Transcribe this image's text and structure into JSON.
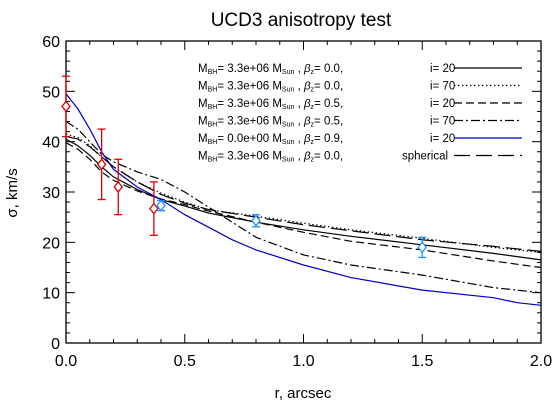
{
  "chart_data": {
    "type": "line",
    "title": "UCD3 anisotropy test",
    "xlabel": "r, arcsec",
    "ylabel": "σ, km/s",
    "xlim": [
      0.0,
      2.0
    ],
    "ylim": [
      0,
      60
    ],
    "xticks": [
      "0.0",
      "0.5",
      "1.0",
      "1.5",
      "2.0"
    ],
    "yticks": [
      "0",
      "10",
      "20",
      "30",
      "40",
      "50",
      "60"
    ],
    "grid": false,
    "legend_position": "top-right",
    "series": [
      {
        "name": "M_BH= 3.3e+06 M_Sun , β_z= 0.0, i= 20",
        "color": "#000000",
        "dash": "solid",
        "x": [
          0.0,
          0.05,
          0.1,
          0.15,
          0.2,
          0.3,
          0.4,
          0.5,
          0.6,
          0.8,
          1.0,
          1.2,
          1.5,
          1.8,
          2.0
        ],
        "y": [
          40.5,
          39.2,
          37.3,
          35.0,
          33.0,
          30.5,
          28.5,
          27.2,
          25.8,
          24.0,
          22.5,
          21.2,
          19.5,
          17.8,
          16.5
        ]
      },
      {
        "name": "M_BH= 3.3e+06 M_Sun , β_z= 0.0, i= 70",
        "color": "#000000",
        "dash": "dotted",
        "x": [
          0.0,
          0.05,
          0.1,
          0.15,
          0.2,
          0.3,
          0.4,
          0.5,
          0.6,
          0.8,
          1.0,
          1.2,
          1.5,
          1.8,
          2.0
        ],
        "y": [
          41.5,
          40.8,
          39.2,
          37.0,
          35.0,
          32.0,
          29.8,
          28.0,
          26.5,
          25.2,
          23.8,
          22.5,
          20.8,
          19.0,
          18.0
        ]
      },
      {
        "name": "M_BH= 3.3e+06 M_Sun , β_z= 0.5, i= 20",
        "color": "#000000",
        "dash": "dashed",
        "x": [
          0.0,
          0.05,
          0.1,
          0.15,
          0.2,
          0.3,
          0.4,
          0.5,
          0.6,
          0.8,
          1.0,
          1.2,
          1.5,
          1.8,
          2.0
        ],
        "y": [
          39.8,
          38.5,
          36.5,
          34.0,
          32.3,
          30.2,
          28.6,
          27.5,
          26.2,
          24.0,
          22.0,
          20.2,
          18.5,
          16.3,
          15.0
        ]
      },
      {
        "name": "M_BH= 3.3e+06 M_Sun , β_z= 0.5, i= 70",
        "color": "#000000",
        "dash": "dashdot",
        "x": [
          0.0,
          0.05,
          0.1,
          0.15,
          0.2,
          0.3,
          0.4,
          0.5,
          0.6,
          0.7,
          0.8,
          1.0,
          1.2,
          1.5,
          1.8,
          2.0
        ],
        "y": [
          44.0,
          42.5,
          40.0,
          37.5,
          36.0,
          34.0,
          32.5,
          30.0,
          27.0,
          24.0,
          21.0,
          17.5,
          15.5,
          13.5,
          11.0,
          10.0
        ]
      },
      {
        "name": "M_BH= 0.0e+00 M_Sun , β_z= 0.9, i= 20",
        "color": "#0000cc",
        "dash": "solid",
        "x": [
          0.0,
          0.05,
          0.1,
          0.15,
          0.2,
          0.3,
          0.4,
          0.5,
          0.6,
          0.7,
          0.8,
          1.0,
          1.2,
          1.5,
          1.8,
          1.9,
          2.0
        ],
        "y": [
          49.5,
          46.5,
          42.5,
          38.0,
          34.5,
          31.0,
          28.5,
          25.5,
          23.0,
          20.5,
          18.5,
          15.5,
          13.0,
          10.5,
          9.0,
          8.0,
          7.5
        ]
      },
      {
        "name": "M_BH= 3.3e+06 M_Sun , β_z= 0.0, spherical",
        "color": "#000000",
        "dash": "longdash",
        "x": [
          0.0,
          0.05,
          0.1,
          0.15,
          0.2,
          0.3,
          0.4,
          0.5,
          0.6,
          0.8,
          1.0,
          1.2,
          1.5,
          1.8,
          2.0
        ],
        "y": [
          41.0,
          40.5,
          39.0,
          37.0,
          35.0,
          32.0,
          29.5,
          27.8,
          26.5,
          25.0,
          23.5,
          22.3,
          20.5,
          19.2,
          18.2
        ]
      }
    ],
    "data_points": [
      {
        "x": 0.0,
        "y": 47.0,
        "err": 6.0,
        "color": "#dd0000",
        "marker": "diamond"
      },
      {
        "x": 0.15,
        "y": 35.5,
        "err": 7.0,
        "color": "#dd0000",
        "marker": "diamond"
      },
      {
        "x": 0.22,
        "y": 31.0,
        "err": 5.5,
        "color": "#dd0000",
        "marker": "diamond"
      },
      {
        "x": 0.37,
        "y": 26.7,
        "err": 5.3,
        "color": "#dd0000",
        "marker": "diamond"
      },
      {
        "x": 0.4,
        "y": 27.3,
        "err": 1.0,
        "color": "#1e90ff",
        "marker": "diamond"
      },
      {
        "x": 0.8,
        "y": 24.3,
        "err": 1.2,
        "color": "#1e90ff",
        "marker": "diamond"
      },
      {
        "x": 1.5,
        "y": 19.0,
        "err": 2.0,
        "color": "#1e90ff",
        "marker": "diamond"
      }
    ]
  },
  "legend": [
    {
      "mbh": "3.3e+06",
      "beta": "0.0",
      "tail": "i=  20"
    },
    {
      "mbh": "3.3e+06",
      "beta": "0.0",
      "tail": "i=  70"
    },
    {
      "mbh": "3.3e+06",
      "beta": "0.5",
      "tail": "i=  20"
    },
    {
      "mbh": "3.3e+06",
      "beta": "0.5",
      "tail": "i=  70"
    },
    {
      "mbh": "0.0e+00",
      "beta": "0.9",
      "tail": "i=  20"
    },
    {
      "mbh": "3.3e+06",
      "beta": "0.0",
      "tail": "spherical"
    }
  ],
  "legend_text": {
    "m": "M",
    "bh_sub": "BH",
    "eq": "= ",
    "sun_sub": "Sun",
    "beta_z": "β",
    "z_sub": "z",
    "beta_eq": "= "
  }
}
